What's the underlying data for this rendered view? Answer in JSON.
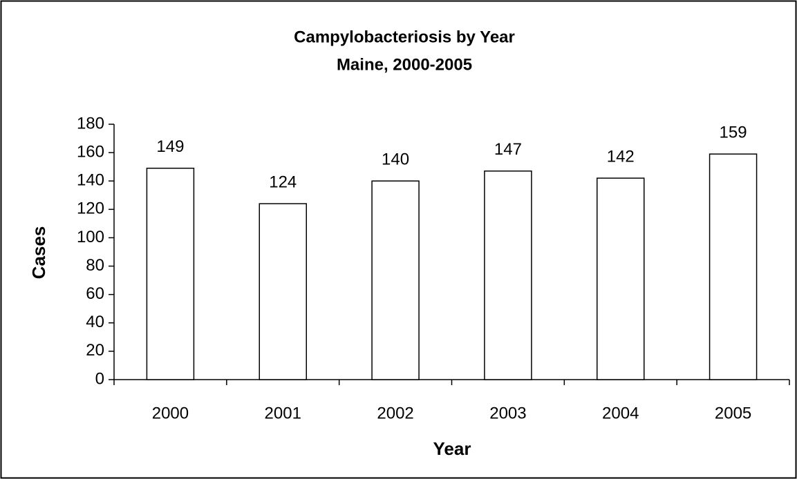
{
  "chart_data": {
    "type": "bar",
    "title": "Campylobacteriosis by Year",
    "subtitle": "Maine, 2000-2005",
    "x_label": "Year",
    "y_label": "Cases",
    "categories": [
      "2000",
      "2001",
      "2002",
      "2003",
      "2004",
      "2005"
    ],
    "values": [
      149,
      124,
      140,
      147,
      142,
      159
    ],
    "color": "#ffffff",
    "ylim": [
      0,
      180
    ],
    "yticks": [
      0,
      20,
      40,
      60,
      80,
      100,
      120,
      140,
      160,
      180
    ],
    "grid": false
  }
}
